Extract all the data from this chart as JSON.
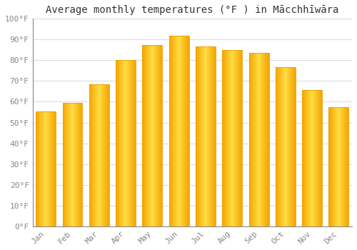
{
  "title": "Average monthly temperatures (°F ) in Mācchhīwāra",
  "months": [
    "Jan",
    "Feb",
    "Mar",
    "Apr",
    "May",
    "Jun",
    "Jul",
    "Aug",
    "Sep",
    "Oct",
    "Nov",
    "Dec"
  ],
  "values": [
    55.4,
    59.5,
    68.5,
    80.2,
    87.3,
    91.8,
    86.8,
    85.1,
    83.7,
    76.8,
    65.7,
    57.5
  ],
  "bar_color_center": "#FFCC44",
  "bar_color_edge": "#F5A500",
  "background_color": "#FFFFFF",
  "grid_color": "#DDDDDD",
  "ylim": [
    0,
    100
  ],
  "yticks": [
    0,
    10,
    20,
    30,
    40,
    50,
    60,
    70,
    80,
    90,
    100
  ],
  "ytick_labels": [
    "0°F",
    "10°F",
    "20°F",
    "30°F",
    "40°F",
    "50°F",
    "60°F",
    "70°F",
    "80°F",
    "90°F",
    "100°F"
  ],
  "title_fontsize": 10,
  "tick_fontsize": 8,
  "font_family": "monospace",
  "tick_color": "#888888",
  "spine_color": "#888888"
}
